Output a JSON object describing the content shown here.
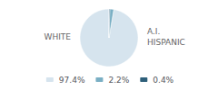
{
  "chart_data": {
    "type": "pie",
    "categories": [
      "97.4%",
      "2.2%",
      "0.4%"
    ],
    "values": [
      97.4,
      2.2,
      0.4
    ],
    "colors": [
      "#d6e4ee",
      "#7aafc4",
      "#2e5f7a"
    ],
    "annotations": [
      "WHITE",
      "A.I.",
      "HISPANIC"
    ],
    "legend": "bottom"
  }
}
